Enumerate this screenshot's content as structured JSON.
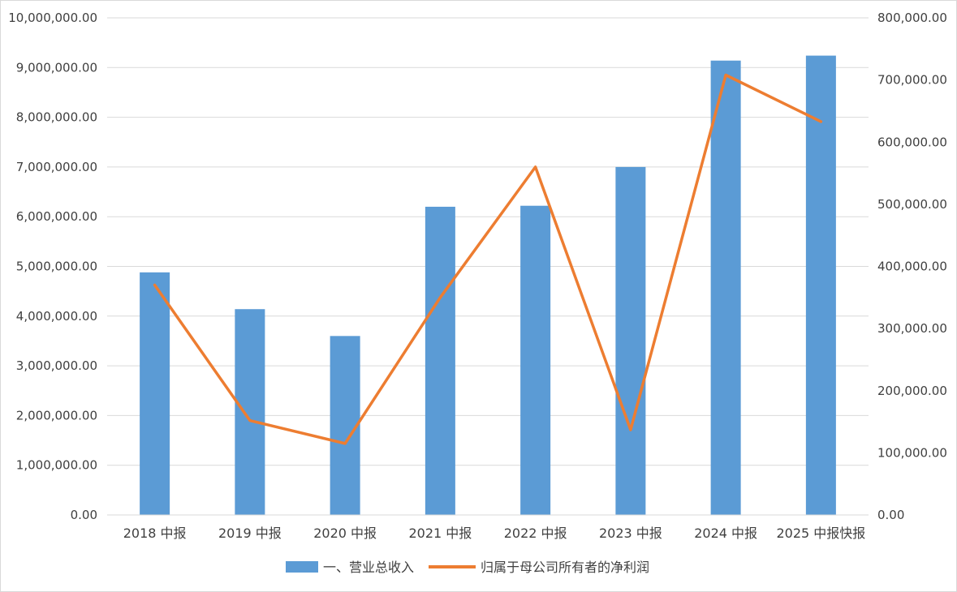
{
  "chart_data": {
    "type": "bar",
    "categories": [
      "2018 中报",
      "2019 中报",
      "2020 中报",
      "2021 中报",
      "2022 中报",
      "2023 中报",
      "2024 中报",
      "2025 中报快报"
    ],
    "series": [
      {
        "name": "一、营业总收入",
        "type": "bar",
        "axis": "left",
        "color": "#5b9bd5",
        "values": [
          4880000,
          4140000,
          3600000,
          6200000,
          6220000,
          7000000,
          9140000,
          9240000
        ]
      },
      {
        "name": "归属于母公司所有者的净利润",
        "type": "line",
        "axis": "right",
        "color": "#ed7d31",
        "values": [
          370000,
          152000,
          115000,
          350000,
          560000,
          137000,
          708000,
          633000
        ]
      }
    ],
    "y_left": {
      "ylim": [
        0,
        10000000
      ],
      "ticks": [
        "0.00",
        "1,000,000.00",
        "2,000,000.00",
        "3,000,000.00",
        "4,000,000.00",
        "5,000,000.00",
        "6,000,000.00",
        "7,000,000.00",
        "8,000,000.00",
        "9,000,000.00",
        "10,000,000.00"
      ]
    },
    "y_right": {
      "ylim": [
        0,
        800000
      ],
      "ticks": [
        "0.00",
        "100,000.00",
        "200,000.00",
        "300,000.00",
        "400,000.00",
        "500,000.00",
        "600,000.00",
        "700,000.00",
        "800,000.00"
      ]
    },
    "grid": true,
    "legend_position": "bottom"
  }
}
